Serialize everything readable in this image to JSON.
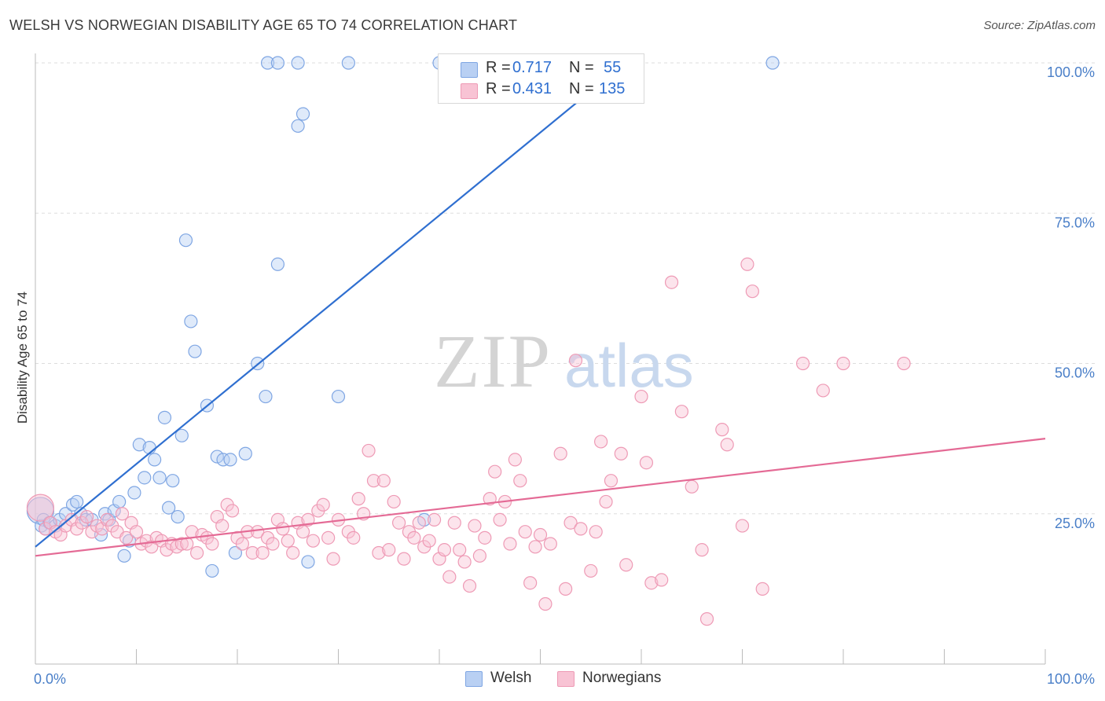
{
  "title": "WELSH VS NORWEGIAN DISABILITY AGE 65 TO 74 CORRELATION CHART",
  "source": "Source: ZipAtlas.com",
  "watermark": {
    "zip": "ZIP",
    "atlas": "atlas"
  },
  "legend": {
    "r_label": "R =",
    "n_label": "N =",
    "welsh": {
      "r": "0.717",
      "n": "55"
    },
    "norwegians": {
      "r": "0.431",
      "n": "135"
    }
  },
  "bottom_legend": {
    "welsh": "Welsh",
    "norwegians": "Norwegians"
  },
  "colors": {
    "welsh_fill": "#b9d0f3",
    "welsh_stroke": "#7fa6e3",
    "welsh_line": "#2f6fd0",
    "norw_fill": "#f8c3d4",
    "norw_stroke": "#ee9ab5",
    "norw_line": "#e46a95",
    "tick_text": "#4a7fc8",
    "grid": "#dddddd"
  },
  "chart_data": {
    "type": "scatter",
    "title": "WELSH VS NORWEGIAN DISABILITY AGE 65 TO 74 CORRELATION CHART",
    "xlabel": "",
    "ylabel": "Disability Age 65 to 74",
    "xlim": [
      0,
      100
    ],
    "ylim": [
      0,
      100
    ],
    "x_tick_labels": [
      "0.0%",
      "100.0%"
    ],
    "y_tick_values": [
      25,
      50,
      75,
      100
    ],
    "y_tick_labels": [
      "25.0%",
      "50.0%",
      "75.0%",
      "100.0%"
    ],
    "grid": true,
    "legend_position": "top-center",
    "series": [
      {
        "name": "Welsh",
        "r": 0.717,
        "n": 55,
        "trend": {
          "x0": 0,
          "y0": 19.5,
          "x1": 58.4,
          "y1": 100
        },
        "points": [
          [
            0.5,
            25.5,
            "big"
          ],
          [
            0.6,
            23.0
          ],
          [
            0.8,
            24.0
          ],
          [
            1.0,
            22.5
          ],
          [
            1.4,
            23.5
          ],
          [
            2.0,
            23.0
          ],
          [
            2.4,
            24.0
          ],
          [
            3.0,
            25.0
          ],
          [
            3.7,
            26.5
          ],
          [
            4.1,
            27.0
          ],
          [
            4.5,
            25.0
          ],
          [
            5.0,
            24.0
          ],
          [
            5.6,
            24.0
          ],
          [
            6.5,
            21.5
          ],
          [
            6.9,
            25.0
          ],
          [
            7.3,
            24.0
          ],
          [
            7.8,
            25.5
          ],
          [
            8.3,
            27.0
          ],
          [
            8.8,
            18.0
          ],
          [
            9.3,
            20.5
          ],
          [
            9.8,
            28.5
          ],
          [
            10.3,
            36.5
          ],
          [
            10.8,
            31.0
          ],
          [
            11.3,
            36.0
          ],
          [
            11.8,
            34.0
          ],
          [
            12.3,
            31.0
          ],
          [
            12.8,
            41.0
          ],
          [
            13.2,
            26.0
          ],
          [
            13.6,
            30.5
          ],
          [
            14.1,
            24.5
          ],
          [
            14.5,
            38.0
          ],
          [
            14.9,
            70.5
          ],
          [
            15.4,
            57.0
          ],
          [
            15.8,
            52.0
          ],
          [
            17.0,
            43.0
          ],
          [
            17.5,
            15.5
          ],
          [
            18.0,
            34.5
          ],
          [
            18.6,
            34.0
          ],
          [
            19.3,
            34.0
          ],
          [
            19.8,
            18.5
          ],
          [
            20.8,
            35.0
          ],
          [
            22.0,
            50.0
          ],
          [
            22.8,
            44.5
          ],
          [
            23.0,
            100
          ],
          [
            24.0,
            100
          ],
          [
            26.0,
            100
          ],
          [
            31.0,
            100
          ],
          [
            24.0,
            66.5
          ],
          [
            26.0,
            89.5
          ],
          [
            26.5,
            91.5
          ],
          [
            27.0,
            17.0
          ],
          [
            30.0,
            44.5
          ],
          [
            38.5,
            24.0
          ],
          [
            40.0,
            100
          ],
          [
            53.5,
            100
          ],
          [
            73.0,
            100
          ]
        ]
      },
      {
        "name": "Norwegians",
        "r": 0.431,
        "n": 135,
        "trend": {
          "x0": 0,
          "y0": 18.0,
          "x1": 100,
          "y1": 37.5
        },
        "points": [
          [
            0.5,
            26.0,
            "big"
          ],
          [
            1.0,
            22.5
          ],
          [
            1.5,
            23.5
          ],
          [
            2.0,
            22.0
          ],
          [
            2.5,
            21.5
          ],
          [
            3.0,
            23.0
          ],
          [
            3.6,
            24.0
          ],
          [
            4.1,
            22.5
          ],
          [
            4.6,
            23.5
          ],
          [
            5.1,
            24.5
          ],
          [
            5.6,
            22.0
          ],
          [
            6.1,
            23.0
          ],
          [
            6.6,
            22.5
          ],
          [
            7.1,
            24.0
          ],
          [
            7.6,
            23.0
          ],
          [
            8.1,
            22.0
          ],
          [
            8.6,
            25.0
          ],
          [
            9.0,
            21.0
          ],
          [
            9.5,
            23.5
          ],
          [
            10.0,
            22.0
          ],
          [
            10.5,
            20.0
          ],
          [
            11.0,
            20.5
          ],
          [
            11.5,
            19.5
          ],
          [
            12.0,
            21.0
          ],
          [
            12.5,
            20.5
          ],
          [
            13.0,
            19.0
          ],
          [
            13.5,
            20.0
          ],
          [
            14.0,
            19.5
          ],
          [
            14.5,
            20.0
          ],
          [
            15.0,
            20.0
          ],
          [
            15.5,
            22.0
          ],
          [
            16.0,
            18.5
          ],
          [
            16.5,
            21.5
          ],
          [
            17.0,
            21.0
          ],
          [
            17.5,
            20.0
          ],
          [
            18.0,
            24.5
          ],
          [
            18.5,
            23.0
          ],
          [
            19.0,
            26.5
          ],
          [
            19.5,
            25.5
          ],
          [
            20.0,
            21.0
          ],
          [
            20.5,
            20.0
          ],
          [
            21.0,
            22.0
          ],
          [
            21.5,
            18.5
          ],
          [
            22.0,
            22.0
          ],
          [
            22.5,
            18.5
          ],
          [
            23.0,
            21.0
          ],
          [
            23.5,
            20.0
          ],
          [
            24.0,
            24.0
          ],
          [
            24.5,
            22.5
          ],
          [
            25.0,
            20.5
          ],
          [
            25.5,
            18.5
          ],
          [
            26.0,
            23.5
          ],
          [
            26.5,
            22.0
          ],
          [
            27.0,
            24.0
          ],
          [
            27.5,
            20.5
          ],
          [
            28.0,
            25.5
          ],
          [
            28.5,
            26.5
          ],
          [
            29.0,
            21.0
          ],
          [
            29.5,
            17.5
          ],
          [
            30.0,
            24.0
          ],
          [
            31.0,
            22.0
          ],
          [
            31.5,
            21.0
          ],
          [
            32.0,
            27.5
          ],
          [
            32.5,
            25.0
          ],
          [
            33.0,
            35.5
          ],
          [
            33.5,
            30.5
          ],
          [
            34.0,
            18.5
          ],
          [
            34.5,
            30.5
          ],
          [
            35.0,
            19.0
          ],
          [
            35.5,
            27.0
          ],
          [
            36.0,
            23.5
          ],
          [
            36.5,
            17.5
          ],
          [
            37.0,
            22.0
          ],
          [
            37.5,
            21.0
          ],
          [
            38.0,
            23.5
          ],
          [
            38.5,
            19.5
          ],
          [
            39.0,
            20.5
          ],
          [
            39.5,
            24.0
          ],
          [
            40.0,
            17.5
          ],
          [
            40.5,
            19.0
          ],
          [
            41.0,
            14.5
          ],
          [
            41.5,
            23.5
          ],
          [
            42.0,
            19.0
          ],
          [
            42.5,
            17.0
          ],
          [
            43.0,
            13.0
          ],
          [
            43.5,
            23.0
          ],
          [
            44.0,
            18.0
          ],
          [
            44.5,
            21.0
          ],
          [
            45.0,
            27.5
          ],
          [
            45.5,
            32.0
          ],
          [
            46.0,
            24.0
          ],
          [
            46.5,
            27.0
          ],
          [
            47.0,
            20.0
          ],
          [
            47.5,
            34.0
          ],
          [
            48.0,
            30.5
          ],
          [
            48.5,
            22.0
          ],
          [
            49.0,
            13.5
          ],
          [
            49.5,
            19.5
          ],
          [
            50.0,
            21.5
          ],
          [
            50.5,
            10.0
          ],
          [
            51.0,
            20.0
          ],
          [
            52.0,
            35.0
          ],
          [
            52.5,
            12.5
          ],
          [
            53.0,
            23.5
          ],
          [
            53.5,
            50.5
          ],
          [
            54.0,
            22.5
          ],
          [
            55.0,
            15.5
          ],
          [
            55.5,
            22.0
          ],
          [
            56.0,
            37.0
          ],
          [
            56.5,
            27.0
          ],
          [
            57.0,
            30.5
          ],
          [
            58.0,
            35.0
          ],
          [
            58.5,
            16.5
          ],
          [
            60.0,
            44.5
          ],
          [
            60.5,
            33.5
          ],
          [
            61.0,
            13.5
          ],
          [
            62.0,
            14.0
          ],
          [
            63.0,
            63.5
          ],
          [
            64.0,
            42.0
          ],
          [
            65.0,
            29.5
          ],
          [
            66.0,
            19.0
          ],
          [
            66.5,
            7.5
          ],
          [
            68.0,
            39.0
          ],
          [
            68.5,
            36.5
          ],
          [
            70.0,
            23.0
          ],
          [
            70.5,
            66.5
          ],
          [
            71.0,
            62.0
          ],
          [
            72.0,
            12.5
          ],
          [
            76.0,
            50.0
          ],
          [
            78.0,
            45.5
          ],
          [
            80.0,
            50.0
          ],
          [
            86.0,
            50.0
          ]
        ]
      }
    ]
  }
}
